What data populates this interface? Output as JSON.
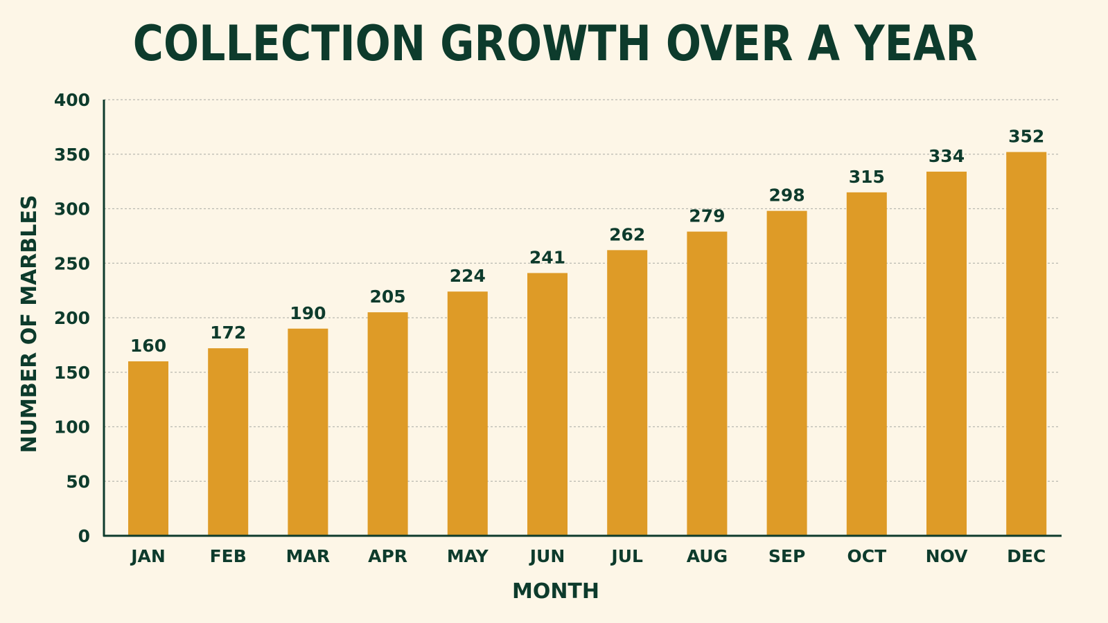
{
  "chart_data": {
    "type": "bar",
    "title": "COLLECTION GROWTH OVER A YEAR",
    "xlabel": "MONTH",
    "ylabel": "NUMBER OF MARBLES",
    "categories": [
      "JAN",
      "FEB",
      "MAR",
      "APR",
      "MAY",
      "JUN",
      "JUL",
      "AUG",
      "SEP",
      "OCT",
      "NOV",
      "DEC"
    ],
    "values": [
      160,
      172,
      190,
      205,
      224,
      241,
      262,
      279,
      298,
      315,
      334,
      352
    ],
    "ylim": [
      0,
      400
    ],
    "yticks": [
      0,
      50,
      100,
      150,
      200,
      250,
      300,
      350,
      400
    ],
    "grid": true,
    "legend": "none",
    "colors": {
      "bar": "#de9b27",
      "text": "#0d3b2c",
      "axis": "#0d3b2c",
      "grid": "#b8b8b0",
      "background": "#fdf6e7"
    }
  }
}
